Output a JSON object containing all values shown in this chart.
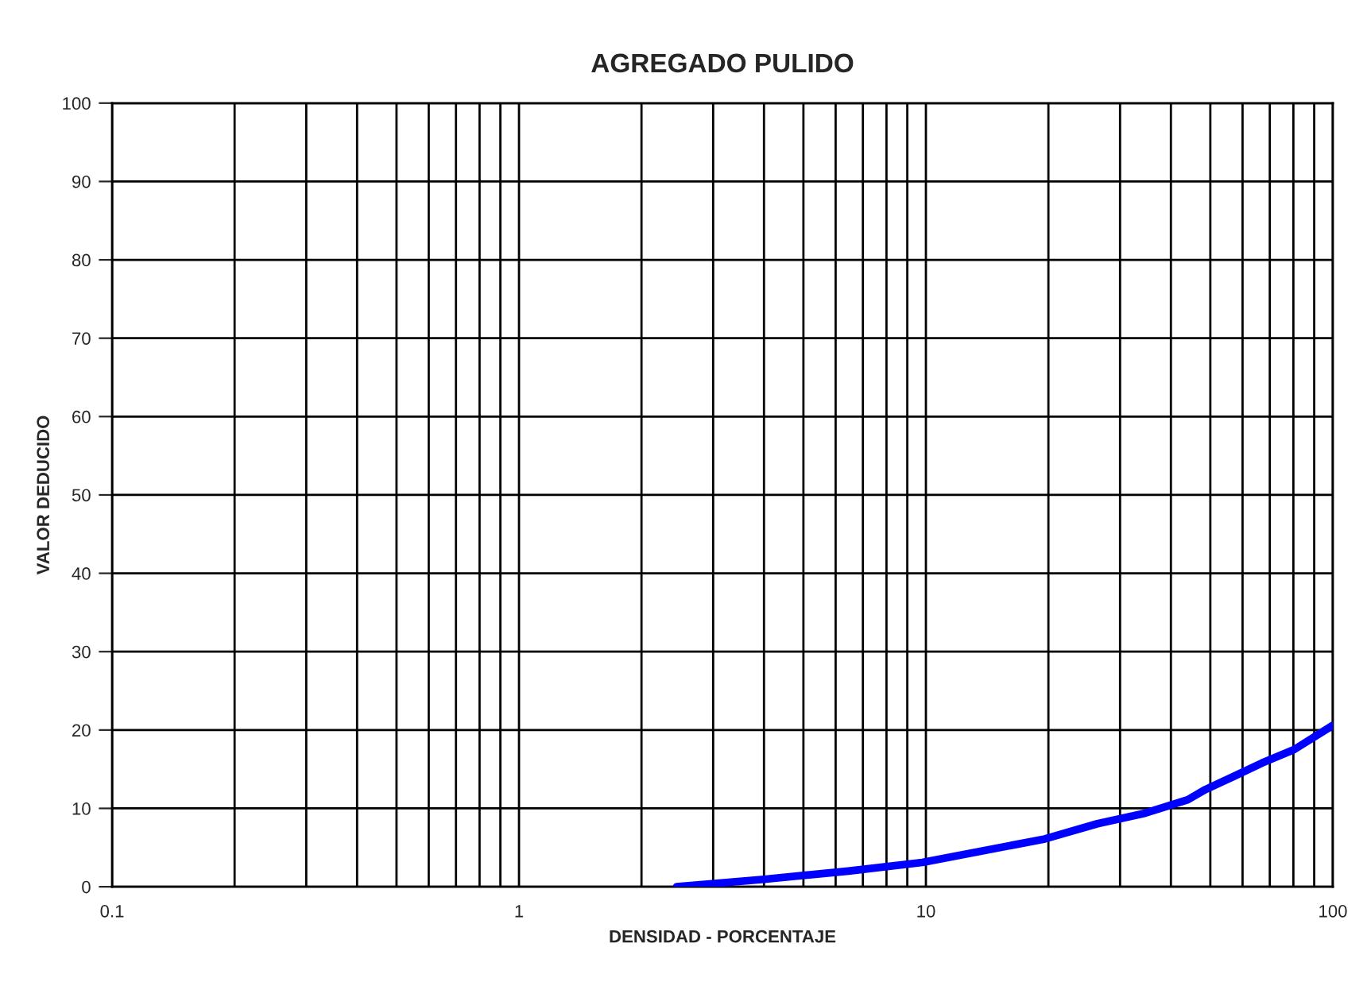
{
  "chart_data": {
    "type": "line",
    "title": "AGREGADO PULIDO",
    "xlabel": "DENSIDAD - PORCENTAJE",
    "ylabel": "VALOR DEDUCIDO",
    "log": "x",
    "grid": true,
    "marker": "none",
    "line_style": "solid",
    "x": [
      2.44,
      4.0,
      6.45,
      9.8,
      19.6,
      26.4,
      34.6,
      44,
      48.6,
      57.2,
      67,
      80.3,
      100
    ],
    "series": [
      {
        "color": "#0000ff",
        "values": [
          0,
          0.95,
          2.0,
          3.1,
          6.1,
          8.05,
          9.4,
          11.1,
          12.4,
          14.1,
          15.8,
          17.5,
          20.6
        ]
      }
    ],
    "xlim": [
      0.1,
      100
    ],
    "ylim": [
      0,
      100
    ],
    "xticks": [
      0.1,
      {
        "value": 0.2,
        "label": null
      },
      {
        "value": 0.3,
        "label": null
      },
      {
        "value": 0.4,
        "label": null
      },
      {
        "value": 0.5,
        "label": null
      },
      {
        "value": 0.6,
        "label": null
      },
      {
        "value": 0.7,
        "label": null
      },
      {
        "value": 0.8,
        "label": null
      },
      {
        "value": 0.9,
        "label": null
      },
      1,
      {
        "value": 2,
        "label": null
      },
      {
        "value": 3,
        "label": null
      },
      {
        "value": 4,
        "label": null
      },
      {
        "value": 5,
        "label": null
      },
      {
        "value": 6,
        "label": null
      },
      {
        "value": 7,
        "label": null
      },
      {
        "value": 8,
        "label": null
      },
      {
        "value": 9,
        "label": null
      },
      10,
      {
        "value": 20,
        "label": null
      },
      {
        "value": 30,
        "label": null
      },
      {
        "value": 40,
        "label": null
      },
      {
        "value": 50,
        "label": null
      },
      {
        "value": 60,
        "label": null
      },
      {
        "value": 70,
        "label": null
      },
      {
        "value": 80,
        "label": null
      },
      {
        "value": 90,
        "label": null
      },
      100
    ],
    "yticks": [
      0,
      10,
      20,
      30,
      40,
      50,
      60,
      70,
      80,
      90,
      100
    ]
  }
}
